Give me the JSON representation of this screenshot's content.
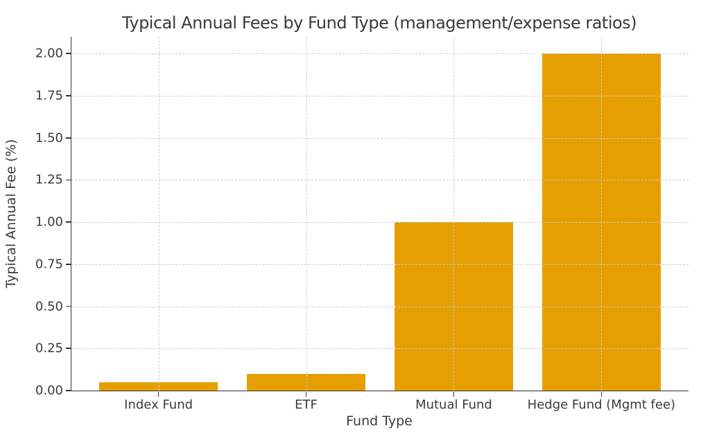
{
  "chart_data": {
    "type": "bar",
    "title": "Typical Annual Fees by Fund Type (management/expense ratios)",
    "xlabel": "Fund Type",
    "ylabel": "Typical Annual Fee (%)",
    "categories": [
      "Index Fund",
      "ETF",
      "Mutual Fund",
      "Hedge Fund (Mgmt fee)"
    ],
    "values": [
      0.05,
      0.1,
      1.0,
      2.0
    ],
    "ylim": [
      0,
      2.1
    ],
    "yticks": [
      0,
      0.25,
      0.5,
      0.75,
      1.0,
      1.25,
      1.5,
      1.75,
      2.0
    ],
    "ytick_labels": [
      "0.00",
      "0.25",
      "0.50",
      "0.75",
      "1.00",
      "1.25",
      "1.50",
      "1.75",
      "2.00"
    ],
    "bar_width_fraction": 0.8,
    "x_edge_margin_units": 0.59,
    "grid": {
      "visible": true,
      "style": "dashed",
      "axes": "both",
      "drawn_over_bars": true
    },
    "legend": null,
    "colors": {
      "bar": "#E69F00",
      "grid": "#cccccc",
      "axis": "#333333",
      "text": "#3a3a3a",
      "background": "#ffffff"
    }
  }
}
